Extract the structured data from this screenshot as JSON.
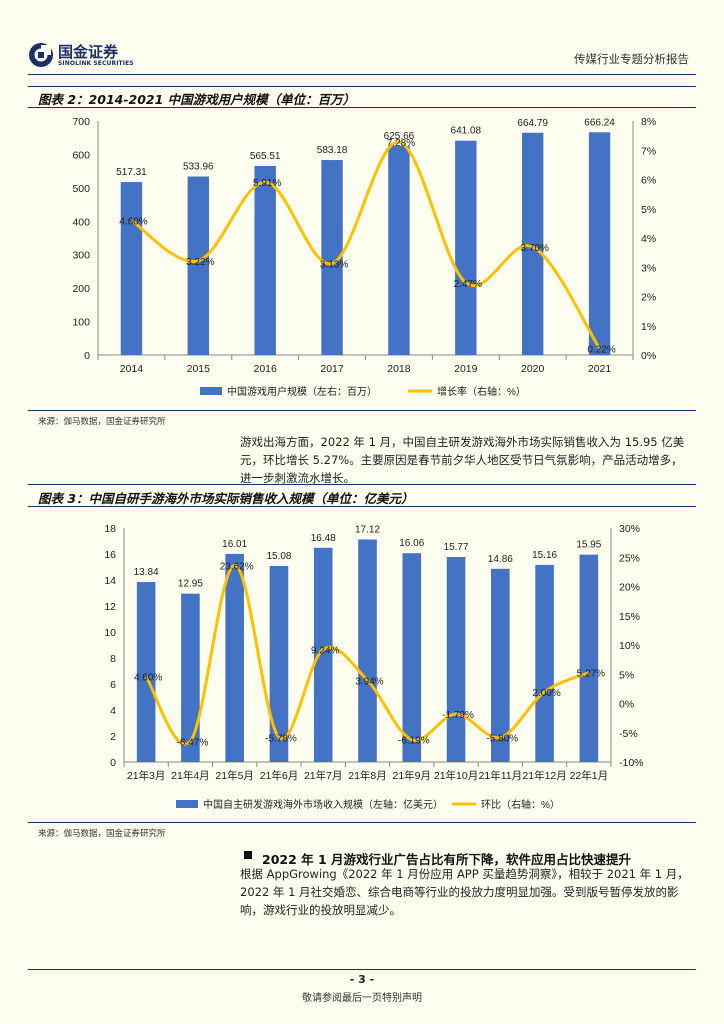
{
  "header": {
    "logo_name": "国金证券",
    "logo_en": "SINOLINK SECURITIES",
    "report_title": "传媒行业专题分析报告"
  },
  "figure2": {
    "title": "图表 2：2014-2021 中国游戏用户规模（单位：百万）",
    "source": "来源：伽马数据，国金证券研究所",
    "chart_data": {
      "type": "bar+line",
      "categories": [
        "2014",
        "2015",
        "2016",
        "2017",
        "2018",
        "2019",
        "2020",
        "2021"
      ],
      "series": [
        {
          "name": "中国游戏用户规模（左右：百万）",
          "type": "bar",
          "axis": "left",
          "values": [
            517.31,
            533.96,
            565.51,
            583.18,
            625.66,
            641.08,
            664.79,
            666.24
          ],
          "labels": [
            "517.31",
            "533.96",
            "565.51",
            "583.18",
            "625.66",
            "641.08",
            "664.79",
            "666.24"
          ]
        },
        {
          "name": "增长率（右轴：%）",
          "type": "line",
          "axis": "right",
          "values": [
            4.6,
            3.22,
            5.91,
            3.13,
            7.28,
            2.47,
            3.7,
            0.22
          ],
          "labels": [
            "4.60%",
            "3.22%",
            "5.91%",
            "3.13%",
            "7.28%",
            "2.47%",
            "3.70%",
            "0.22%"
          ]
        }
      ],
      "ylim_left": [
        0,
        700
      ],
      "yticks_left": [
        "0",
        "100",
        "200",
        "300",
        "400",
        "500",
        "600",
        "700"
      ],
      "ylim_right": [
        0,
        8
      ],
      "yticks_right": [
        "0%",
        "1%",
        "2%",
        "3%",
        "4%",
        "5%",
        "6%",
        "7%",
        "8%"
      ],
      "legend_position": "bottom"
    }
  },
  "paragraph1": "游戏出海方面，2022 年 1 月，中国自主研发游戏海外市场实际销售收入为 15.95 亿美元，环比增长 5.27%。主要原因是春节前夕华人地区受节日气氛影响，产品活动增多，进一步刺激流水增长。",
  "figure3": {
    "title": "图表 3：中国自研手游海外市场实际销售收入规模（单位：亿美元）",
    "source": "来源：伽马数据，国金证券研究所",
    "chart_data": {
      "type": "bar+line",
      "categories": [
        "21年3月",
        "21年4月",
        "21年5月",
        "21年6月",
        "21年7月",
        "21年8月",
        "21年9月",
        "21年10月",
        "21年11月",
        "21年12月",
        "22年1月"
      ],
      "series": [
        {
          "name": "中国自主研发游戏海外市场收入规模（左轴：亿美元）",
          "type": "bar",
          "axis": "left",
          "values": [
            13.84,
            12.95,
            16.01,
            15.08,
            16.48,
            17.12,
            16.06,
            15.77,
            14.86,
            15.16,
            15.95
          ],
          "labels": [
            "13.84",
            "12.95",
            "16.01",
            "15.08",
            "16.48",
            "17.12",
            "16.06",
            "15.77",
            "14.86",
            "15.16",
            "15.95"
          ]
        },
        {
          "name": "环比（右轴：%）",
          "type": "line",
          "axis": "right",
          "values": [
            4.6,
            -6.47,
            23.62,
            -5.78,
            9.24,
            3.94,
            -6.19,
            -1.79,
            -5.8,
            2.0,
            5.27
          ],
          "labels": [
            "4.60%",
            "-6.47%",
            "23.62%",
            "-5.78%",
            "9.24%",
            "3.94%",
            "-6.19%",
            "-1.79%",
            "-5.80%",
            "2.00%",
            "5.27%"
          ]
        }
      ],
      "ylim_left": [
        0,
        18
      ],
      "yticks_left": [
        "0",
        "2",
        "4",
        "6",
        "8",
        "10",
        "12",
        "14",
        "16",
        "18"
      ],
      "ylim_right": [
        -10,
        30
      ],
      "yticks_right": [
        "-10%",
        "-5%",
        "0%",
        "5%",
        "10%",
        "15%",
        "20%",
        "25%",
        "30%"
      ],
      "legend_position": "bottom"
    }
  },
  "section": {
    "heading": "2022 年 1 月游戏行业广告占比有所下降，软件应用占比快速提升",
    "paragraph": "根据 AppGrowing《2022 年 1 月份应用 APP 买量趋势洞察》，相较于 2021 年 1 月， 2022 年 1 月社交婚恋、综合电商等行业的投放力度明显加强。受到版号暂停发放的影响，游戏行业的投放明显减少。"
  },
  "footer": {
    "page_number": "- 3 -",
    "note": "敬请参阅最后一页特别声明"
  },
  "colors": {
    "bar": "#4472c4",
    "line": "#ffc000",
    "brand": "#1d2f6b"
  }
}
